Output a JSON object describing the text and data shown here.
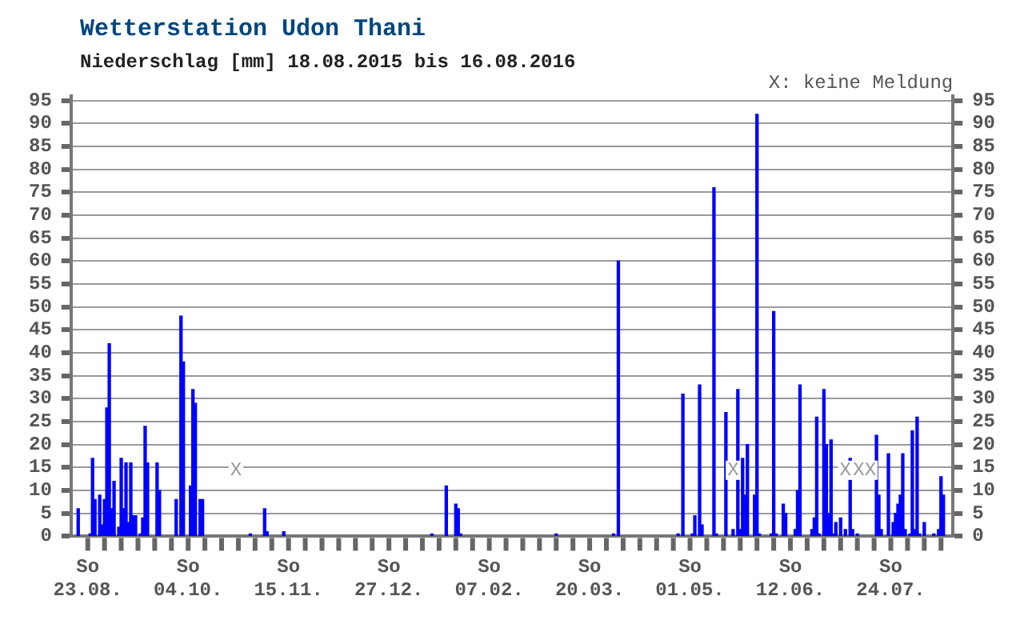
{
  "chart_data": {
    "type": "bar",
    "title": "Wetterstation Udon Thani",
    "subtitle": "Niederschlag [mm] 18.08.2015 bis 16.08.2016",
    "annotations": [
      "X: keine Meldung",
      {
        "text": "X",
        "x": "2015-10-24"
      },
      {
        "text": "X",
        "x": "2016-05-19"
      },
      {
        "text": "X",
        "x": "2016-07-05"
      },
      {
        "text": "XX",
        "x": "2016-07-13"
      }
    ],
    "x": [
      "2015-08-19",
      "2015-08-24",
      "2015-08-25",
      "2015-08-26",
      "2015-08-28",
      "2015-08-29",
      "2015-08-30",
      "2015-08-31",
      "2015-09-01",
      "2015-09-02",
      "2015-09-03",
      "2015-09-05",
      "2015-09-06",
      "2015-09-07",
      "2015-09-08",
      "2015-09-09",
      "2015-09-10",
      "2015-09-11",
      "2015-09-12",
      "2015-09-14",
      "2015-09-15",
      "2015-09-16",
      "2015-09-17",
      "2015-09-21",
      "2015-09-22",
      "2015-09-29",
      "2015-10-01",
      "2015-10-02",
      "2015-10-05",
      "2015-10-06",
      "2015-10-07",
      "2015-10-09",
      "2015-10-10",
      "2015-10-30",
      "2015-11-05",
      "2015-11-06",
      "2015-11-13",
      "2016-01-14",
      "2016-01-20",
      "2016-01-24",
      "2016-01-25",
      "2016-01-26",
      "2016-03-06",
      "2016-03-30",
      "2016-04-01",
      "2016-04-26",
      "2016-04-28",
      "2016-05-02",
      "2016-05-03",
      "2016-05-05",
      "2016-05-06",
      "2016-05-11",
      "2016-05-12",
      "2016-05-16",
      "2016-05-19",
      "2016-05-21",
      "2016-05-22",
      "2016-05-23",
      "2016-05-24",
      "2016-05-25",
      "2016-05-28",
      "2016-05-29",
      "2016-05-30",
      "2016-06-04",
      "2016-06-05",
      "2016-06-06",
      "2016-06-09",
      "2016-06-10",
      "2016-06-14",
      "2016-06-15",
      "2016-06-16",
      "2016-06-21",
      "2016-06-22",
      "2016-06-23",
      "2016-06-24",
      "2016-06-26",
      "2016-06-27",
      "2016-06-28",
      "2016-06-29",
      "2016-06-30",
      "2016-07-01",
      "2016-07-03",
      "2016-07-05",
      "2016-07-07",
      "2016-07-08",
      "2016-07-10",
      "2016-07-18",
      "2016-07-19",
      "2016-07-20",
      "2016-07-23",
      "2016-07-25",
      "2016-07-26",
      "2016-07-27",
      "2016-07-28",
      "2016-07-29",
      "2016-07-30",
      "2016-08-01",
      "2016-08-02",
      "2016-08-03",
      "2016-08-04",
      "2016-08-05",
      "2016-08-07",
      "2016-08-11",
      "2016-08-13",
      "2016-08-14",
      "2016-08-15"
    ],
    "values": [
      6,
      0.5,
      17,
      8,
      9,
      2.5,
      8,
      28,
      42,
      6,
      12,
      2,
      17,
      6,
      16,
      3,
      16,
      4.5,
      4.5,
      0.5,
      4,
      24,
      16,
      16,
      10,
      8,
      48,
      38,
      11,
      32,
      29,
      8,
      8,
      0.5,
      6,
      1,
      1,
      0.5,
      11,
      7,
      6,
      0.5,
      0.5,
      0.5,
      60,
      0.5,
      31,
      0.5,
      4.5,
      33,
      2.5,
      76,
      0.5,
      27,
      1.5,
      32,
      1.5,
      17,
      9,
      20,
      9,
      92,
      0.5,
      0.5,
      49,
      0.5,
      7,
      5,
      1.5,
      10,
      33,
      1.5,
      4,
      26,
      0.5,
      32,
      20,
      5,
      21,
      0.5,
      3,
      4,
      1.5,
      17,
      1.5,
      0.5,
      22,
      9,
      1.5,
      18,
      3,
      5,
      7,
      9,
      18,
      1.5,
      0.5,
      23,
      1.5,
      26,
      0.5,
      3,
      0.5,
      1.5,
      13,
      9
    ],
    "color": "#0000ff",
    "xlim": [
      "2015-08-16",
      "2016-08-19"
    ],
    "xticks": [
      {
        "value": "2015-08-23",
        "label": "So 23.08."
      },
      {
        "value": "2015-08-30",
        "label": null
      },
      {
        "value": "2015-09-06",
        "label": null
      },
      {
        "value": "2015-09-13",
        "label": null
      },
      {
        "value": "2015-09-20",
        "label": null
      },
      {
        "value": "2015-09-27",
        "label": null
      },
      {
        "value": "2015-10-04",
        "label": "So 04.10."
      },
      {
        "value": "2015-10-11",
        "label": null
      },
      {
        "value": "2015-10-18",
        "label": null
      },
      {
        "value": "2015-10-25",
        "label": null
      },
      {
        "value": "2015-11-01",
        "label": null
      },
      {
        "value": "2015-11-08",
        "label": null
      },
      {
        "value": "2015-11-15",
        "label": "So 15.11."
      },
      {
        "value": "2015-11-22",
        "label": null
      },
      {
        "value": "2015-11-29",
        "label": null
      },
      {
        "value": "2015-12-06",
        "label": null
      },
      {
        "value": "2015-12-13",
        "label": null
      },
      {
        "value": "2015-12-20",
        "label": null
      },
      {
        "value": "2015-12-27",
        "label": "So 27.12."
      },
      {
        "value": "2016-01-03",
        "label": null
      },
      {
        "value": "2016-01-10",
        "label": null
      },
      {
        "value": "2016-01-17",
        "label": null
      },
      {
        "value": "2016-01-24",
        "label": null
      },
      {
        "value": "2016-01-31",
        "label": null
      },
      {
        "value": "2016-02-07",
        "label": "So 07.02."
      },
      {
        "value": "2016-02-14",
        "label": null
      },
      {
        "value": "2016-02-21",
        "label": null
      },
      {
        "value": "2016-02-28",
        "label": null
      },
      {
        "value": "2016-03-06",
        "label": null
      },
      {
        "value": "2016-03-13",
        "label": null
      },
      {
        "value": "2016-03-20",
        "label": "So 20.03."
      },
      {
        "value": "2016-03-27",
        "label": null
      },
      {
        "value": "2016-04-03",
        "label": null
      },
      {
        "value": "2016-04-10",
        "label": null
      },
      {
        "value": "2016-04-17",
        "label": null
      },
      {
        "value": "2016-04-24",
        "label": null
      },
      {
        "value": "2016-05-01",
        "label": "So 01.05."
      },
      {
        "value": "2016-05-08",
        "label": null
      },
      {
        "value": "2016-05-15",
        "label": null
      },
      {
        "value": "2016-05-22",
        "label": null
      },
      {
        "value": "2016-05-29",
        "label": null
      },
      {
        "value": "2016-06-05",
        "label": null
      },
      {
        "value": "2016-06-12",
        "label": "So 12.06."
      },
      {
        "value": "2016-06-19",
        "label": null
      },
      {
        "value": "2016-06-26",
        "label": null
      },
      {
        "value": "2016-07-03",
        "label": null
      },
      {
        "value": "2016-07-10",
        "label": null
      },
      {
        "value": "2016-07-17",
        "label": null
      },
      {
        "value": "2016-07-24",
        "label": "So 24.07."
      },
      {
        "value": "2016-07-31",
        "label": null
      },
      {
        "value": "2016-08-07",
        "label": null
      },
      {
        "value": "2016-08-14",
        "label": null
      }
    ],
    "ylim": [
      0,
      96
    ],
    "yticks": [
      0,
      5,
      10,
      15,
      20,
      25,
      30,
      35,
      40,
      45,
      50,
      55,
      60,
      65,
      70,
      75,
      80,
      85,
      90,
      95
    ],
    "y2lim": [
      0,
      96
    ],
    "y2ticks": [
      0,
      5,
      10,
      15,
      20,
      25,
      30,
      35,
      40,
      45,
      50,
      55,
      60,
      65,
      70,
      75,
      80,
      85,
      90,
      95
    ],
    "grid": "y",
    "legend": false
  }
}
